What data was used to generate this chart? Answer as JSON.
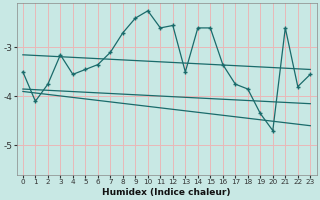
{
  "title": "",
  "xlabel": "Humidex (Indice chaleur)",
  "bg_color": "#c8e8e4",
  "grid_color": "#e8b8b8",
  "line_color": "#1a6b6b",
  "xlim": [
    -0.5,
    23.5
  ],
  "ylim": [
    -5.6,
    -2.1
  ],
  "yticks": [
    -5,
    -4,
    -3
  ],
  "xticks": [
    0,
    1,
    2,
    3,
    4,
    5,
    6,
    7,
    8,
    9,
    10,
    11,
    12,
    13,
    14,
    15,
    16,
    17,
    18,
    19,
    20,
    21,
    22,
    23
  ],
  "main_x": [
    0,
    1,
    2,
    3,
    4,
    5,
    6,
    7,
    8,
    9,
    10,
    11,
    12,
    13,
    14,
    15,
    16,
    17,
    18,
    19,
    20,
    21,
    22,
    23
  ],
  "main_y": [
    -3.5,
    -4.1,
    -3.75,
    -3.15,
    -3.55,
    -3.45,
    -3.35,
    -3.1,
    -2.7,
    -2.4,
    -2.25,
    -2.6,
    -2.55,
    -3.5,
    -2.6,
    -2.6,
    -3.35,
    -3.75,
    -3.85,
    -4.35,
    -4.7,
    -2.6,
    -3.8,
    -3.55
  ],
  "upper_line_x": [
    0,
    23
  ],
  "upper_line_y": [
    -3.15,
    -3.45
  ],
  "lower_line1_x": [
    0,
    23
  ],
  "lower_line1_y": [
    -3.85,
    -4.15
  ],
  "lower_line2_x": [
    0,
    23
  ],
  "lower_line2_y": [
    -3.9,
    -4.6
  ]
}
